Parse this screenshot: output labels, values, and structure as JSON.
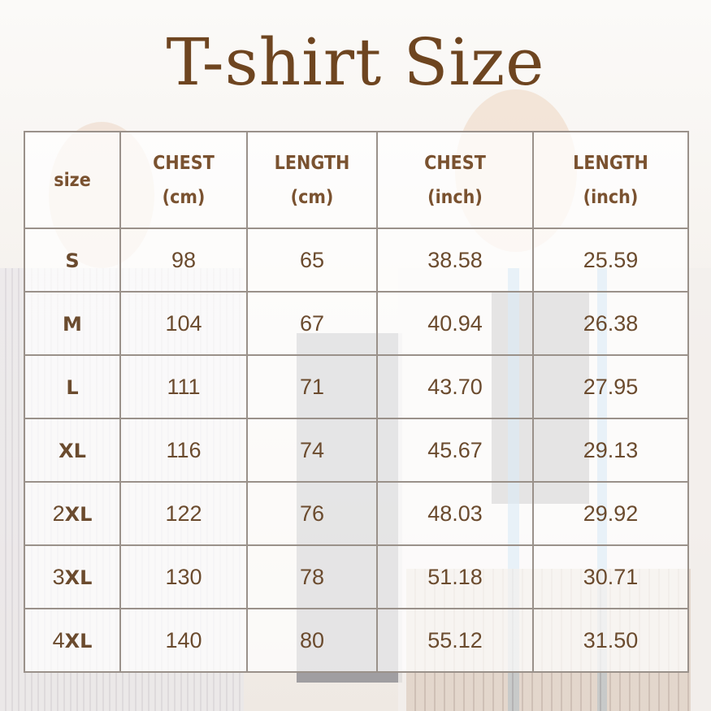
{
  "title": "T-shirt Size",
  "colors": {
    "title": "#6e4520",
    "text": "#6b4b2e",
    "grid": "#9a918a"
  },
  "table": {
    "headers": [
      {
        "line1": "size",
        "line2": ""
      },
      {
        "line1": "CHEST",
        "line2": "(cm)"
      },
      {
        "line1": "LENGTH",
        "line2": "(cm)"
      },
      {
        "line1": "CHEST",
        "line2": "(inch)"
      },
      {
        "line1": "LENGTH",
        "line2": "(inch)"
      }
    ],
    "rows": [
      {
        "size_num": "",
        "size": "S",
        "chest_cm": "98",
        "length_cm": "65",
        "chest_in": "38.58",
        "length_in": "25.59"
      },
      {
        "size_num": "",
        "size": "M",
        "chest_cm": "104",
        "length_cm": "67",
        "chest_in": "40.94",
        "length_in": "26.38"
      },
      {
        "size_num": "",
        "size": "L",
        "chest_cm": "111",
        "length_cm": "71",
        "chest_in": "43.70",
        "length_in": "27.95"
      },
      {
        "size_num": "",
        "size": "XL",
        "chest_cm": "116",
        "length_cm": "74",
        "chest_in": "45.67",
        "length_in": "29.13"
      },
      {
        "size_num": "2",
        "size": "XL",
        "chest_cm": "122",
        "length_cm": "76",
        "chest_in": "48.03",
        "length_in": "29.92"
      },
      {
        "size_num": "3",
        "size": "XL",
        "chest_cm": "130",
        "length_cm": "78",
        "chest_in": "51.18",
        "length_in": "30.71"
      },
      {
        "size_num": "4",
        "size": "XL",
        "chest_cm": "140",
        "length_cm": "80",
        "chest_in": "55.12",
        "length_in": "31.50"
      }
    ]
  }
}
